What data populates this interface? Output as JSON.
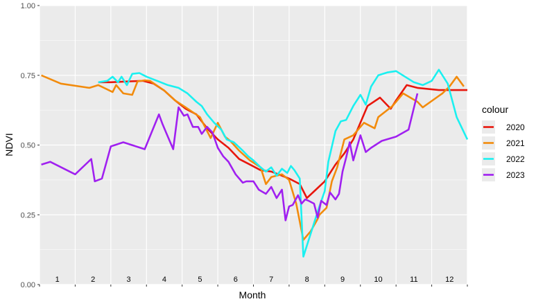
{
  "chart_data": {
    "type": "line",
    "xlabel": "Month",
    "ylabel": "NDVI",
    "xlim": [
      0,
      12
    ],
    "ylim": [
      0,
      1
    ],
    "yticks": [
      0.0,
      0.25,
      0.5,
      0.75,
      1.0
    ],
    "ytick_labels": [
      "0.00",
      "0.25",
      "0.50",
      "0.75",
      "1.00"
    ],
    "month_labels": [
      "1",
      "2",
      "3",
      "4",
      "5",
      "6",
      "7",
      "8",
      "9",
      "10",
      "11",
      "12"
    ],
    "grid": true,
    "legend": {
      "title": "colour",
      "position": "right"
    },
    "series": [
      {
        "name": "2020",
        "color": "#E8160C",
        "x": [
          1.65,
          2.0,
          2.5,
          2.9,
          3.2,
          3.5,
          3.8,
          4.1,
          4.4,
          4.7,
          5.0,
          5.3,
          5.6,
          5.9,
          6.2,
          6.5,
          6.8,
          7.0,
          7.3,
          7.5,
          7.75,
          8.0,
          8.3,
          8.55,
          8.8,
          9.2,
          9.55,
          9.85,
          10.0,
          10.3,
          10.6,
          11.2,
          11.6,
          12.0
        ],
        "y": [
          0.725,
          0.725,
          0.728,
          0.73,
          0.72,
          0.695,
          0.66,
          0.63,
          0.61,
          0.56,
          0.52,
          0.49,
          0.45,
          0.43,
          0.41,
          0.405,
          0.39,
          0.38,
          0.36,
          0.31,
          0.34,
          0.37,
          0.43,
          0.47,
          0.52,
          0.64,
          0.67,
          0.63,
          0.66,
          0.715,
          0.705,
          0.697,
          0.697,
          0.697
        ]
      },
      {
        "name": "2021",
        "color": "#F28B0C",
        "x": [
          0.05,
          0.6,
          1.4,
          1.65,
          2.05,
          2.15,
          2.35,
          2.6,
          2.75,
          2.95,
          3.1,
          3.5,
          3.8,
          4.1,
          4.5,
          4.8,
          5.0,
          5.2,
          5.35,
          5.6,
          5.9,
          6.2,
          6.35,
          6.5,
          6.8,
          7.0,
          7.2,
          7.4,
          7.6,
          7.8,
          7.85,
          8.05,
          8.2,
          8.35,
          8.55,
          8.8,
          9.1,
          9.4,
          9.5,
          9.9,
          10.2,
          10.6,
          10.75,
          11.3,
          11.5,
          11.7,
          11.9
        ],
        "y": [
          0.75,
          0.72,
          0.705,
          0.715,
          0.69,
          0.715,
          0.685,
          0.68,
          0.728,
          0.732,
          0.73,
          0.695,
          0.66,
          0.635,
          0.6,
          0.525,
          0.58,
          0.53,
          0.515,
          0.48,
          0.445,
          0.42,
          0.36,
          0.385,
          0.395,
          0.375,
          0.29,
          0.16,
          0.19,
          0.235,
          0.25,
          0.275,
          0.37,
          0.42,
          0.52,
          0.535,
          0.58,
          0.56,
          0.6,
          0.64,
          0.685,
          0.655,
          0.635,
          0.685,
          0.71,
          0.745,
          0.71
        ]
      },
      {
        "name": "2022",
        "color": "#1BF0F0",
        "x": [
          1.65,
          1.9,
          2.05,
          2.2,
          2.3,
          2.45,
          2.6,
          2.8,
          3.0,
          3.3,
          3.6,
          3.9,
          4.15,
          4.4,
          4.55,
          4.7,
          4.9,
          5.1,
          5.25,
          5.45,
          5.7,
          5.85,
          6.0,
          6.2,
          6.35,
          6.5,
          6.65,
          6.8,
          6.95,
          7.05,
          7.15,
          7.3,
          7.4,
          7.55,
          7.7,
          7.85,
          8.0,
          8.1,
          8.3,
          8.45,
          8.6,
          8.8,
          9.0,
          9.15,
          9.3,
          9.5,
          9.75,
          10.0,
          10.5,
          10.75,
          11.0,
          11.2,
          11.45,
          11.7,
          12.0
        ],
        "y": [
          0.725,
          0.73,
          0.745,
          0.725,
          0.745,
          0.715,
          0.755,
          0.758,
          0.745,
          0.73,
          0.715,
          0.705,
          0.685,
          0.655,
          0.64,
          0.61,
          0.58,
          0.555,
          0.52,
          0.51,
          0.48,
          0.46,
          0.445,
          0.42,
          0.405,
          0.42,
          0.39,
          0.415,
          0.4,
          0.425,
          0.41,
          0.38,
          0.1,
          0.16,
          0.22,
          0.28,
          0.335,
          0.44,
          0.55,
          0.585,
          0.59,
          0.64,
          0.68,
          0.645,
          0.71,
          0.75,
          0.76,
          0.765,
          0.725,
          0.715,
          0.73,
          0.77,
          0.72,
          0.6,
          0.52
        ]
      },
      {
        "name": "2023",
        "color": "#A020F0",
        "x": [
          0.05,
          0.3,
          1.0,
          1.45,
          1.55,
          1.75,
          2.0,
          2.35,
          2.95,
          3.35,
          3.45,
          3.55,
          3.75,
          3.9,
          4.05,
          4.15,
          4.3,
          4.45,
          4.55,
          4.7,
          4.85,
          5.0,
          5.15,
          5.3,
          5.5,
          5.7,
          5.8,
          6.0,
          6.15,
          6.35,
          6.5,
          6.65,
          6.8,
          6.9,
          7.0,
          7.1,
          7.25,
          7.35,
          7.45,
          7.55,
          7.7,
          7.8,
          7.9,
          8.05,
          8.15,
          8.3,
          8.4,
          8.5,
          8.6,
          8.7,
          8.8,
          8.9,
          9.0,
          9.15,
          9.3,
          9.6,
          10.0,
          10.35,
          10.6
        ],
        "y": [
          0.43,
          0.44,
          0.395,
          0.45,
          0.37,
          0.38,
          0.495,
          0.51,
          0.485,
          0.61,
          0.575,
          0.545,
          0.485,
          0.635,
          0.605,
          0.61,
          0.565,
          0.565,
          0.54,
          0.565,
          0.545,
          0.49,
          0.46,
          0.44,
          0.395,
          0.365,
          0.37,
          0.37,
          0.34,
          0.325,
          0.35,
          0.31,
          0.34,
          0.23,
          0.28,
          0.285,
          0.32,
          0.29,
          0.305,
          0.3,
          0.29,
          0.24,
          0.3,
          0.285,
          0.33,
          0.305,
          0.325,
          0.405,
          0.455,
          0.51,
          0.445,
          0.49,
          0.535,
          0.475,
          0.49,
          0.515,
          0.53,
          0.555,
          0.685
        ]
      }
    ]
  }
}
